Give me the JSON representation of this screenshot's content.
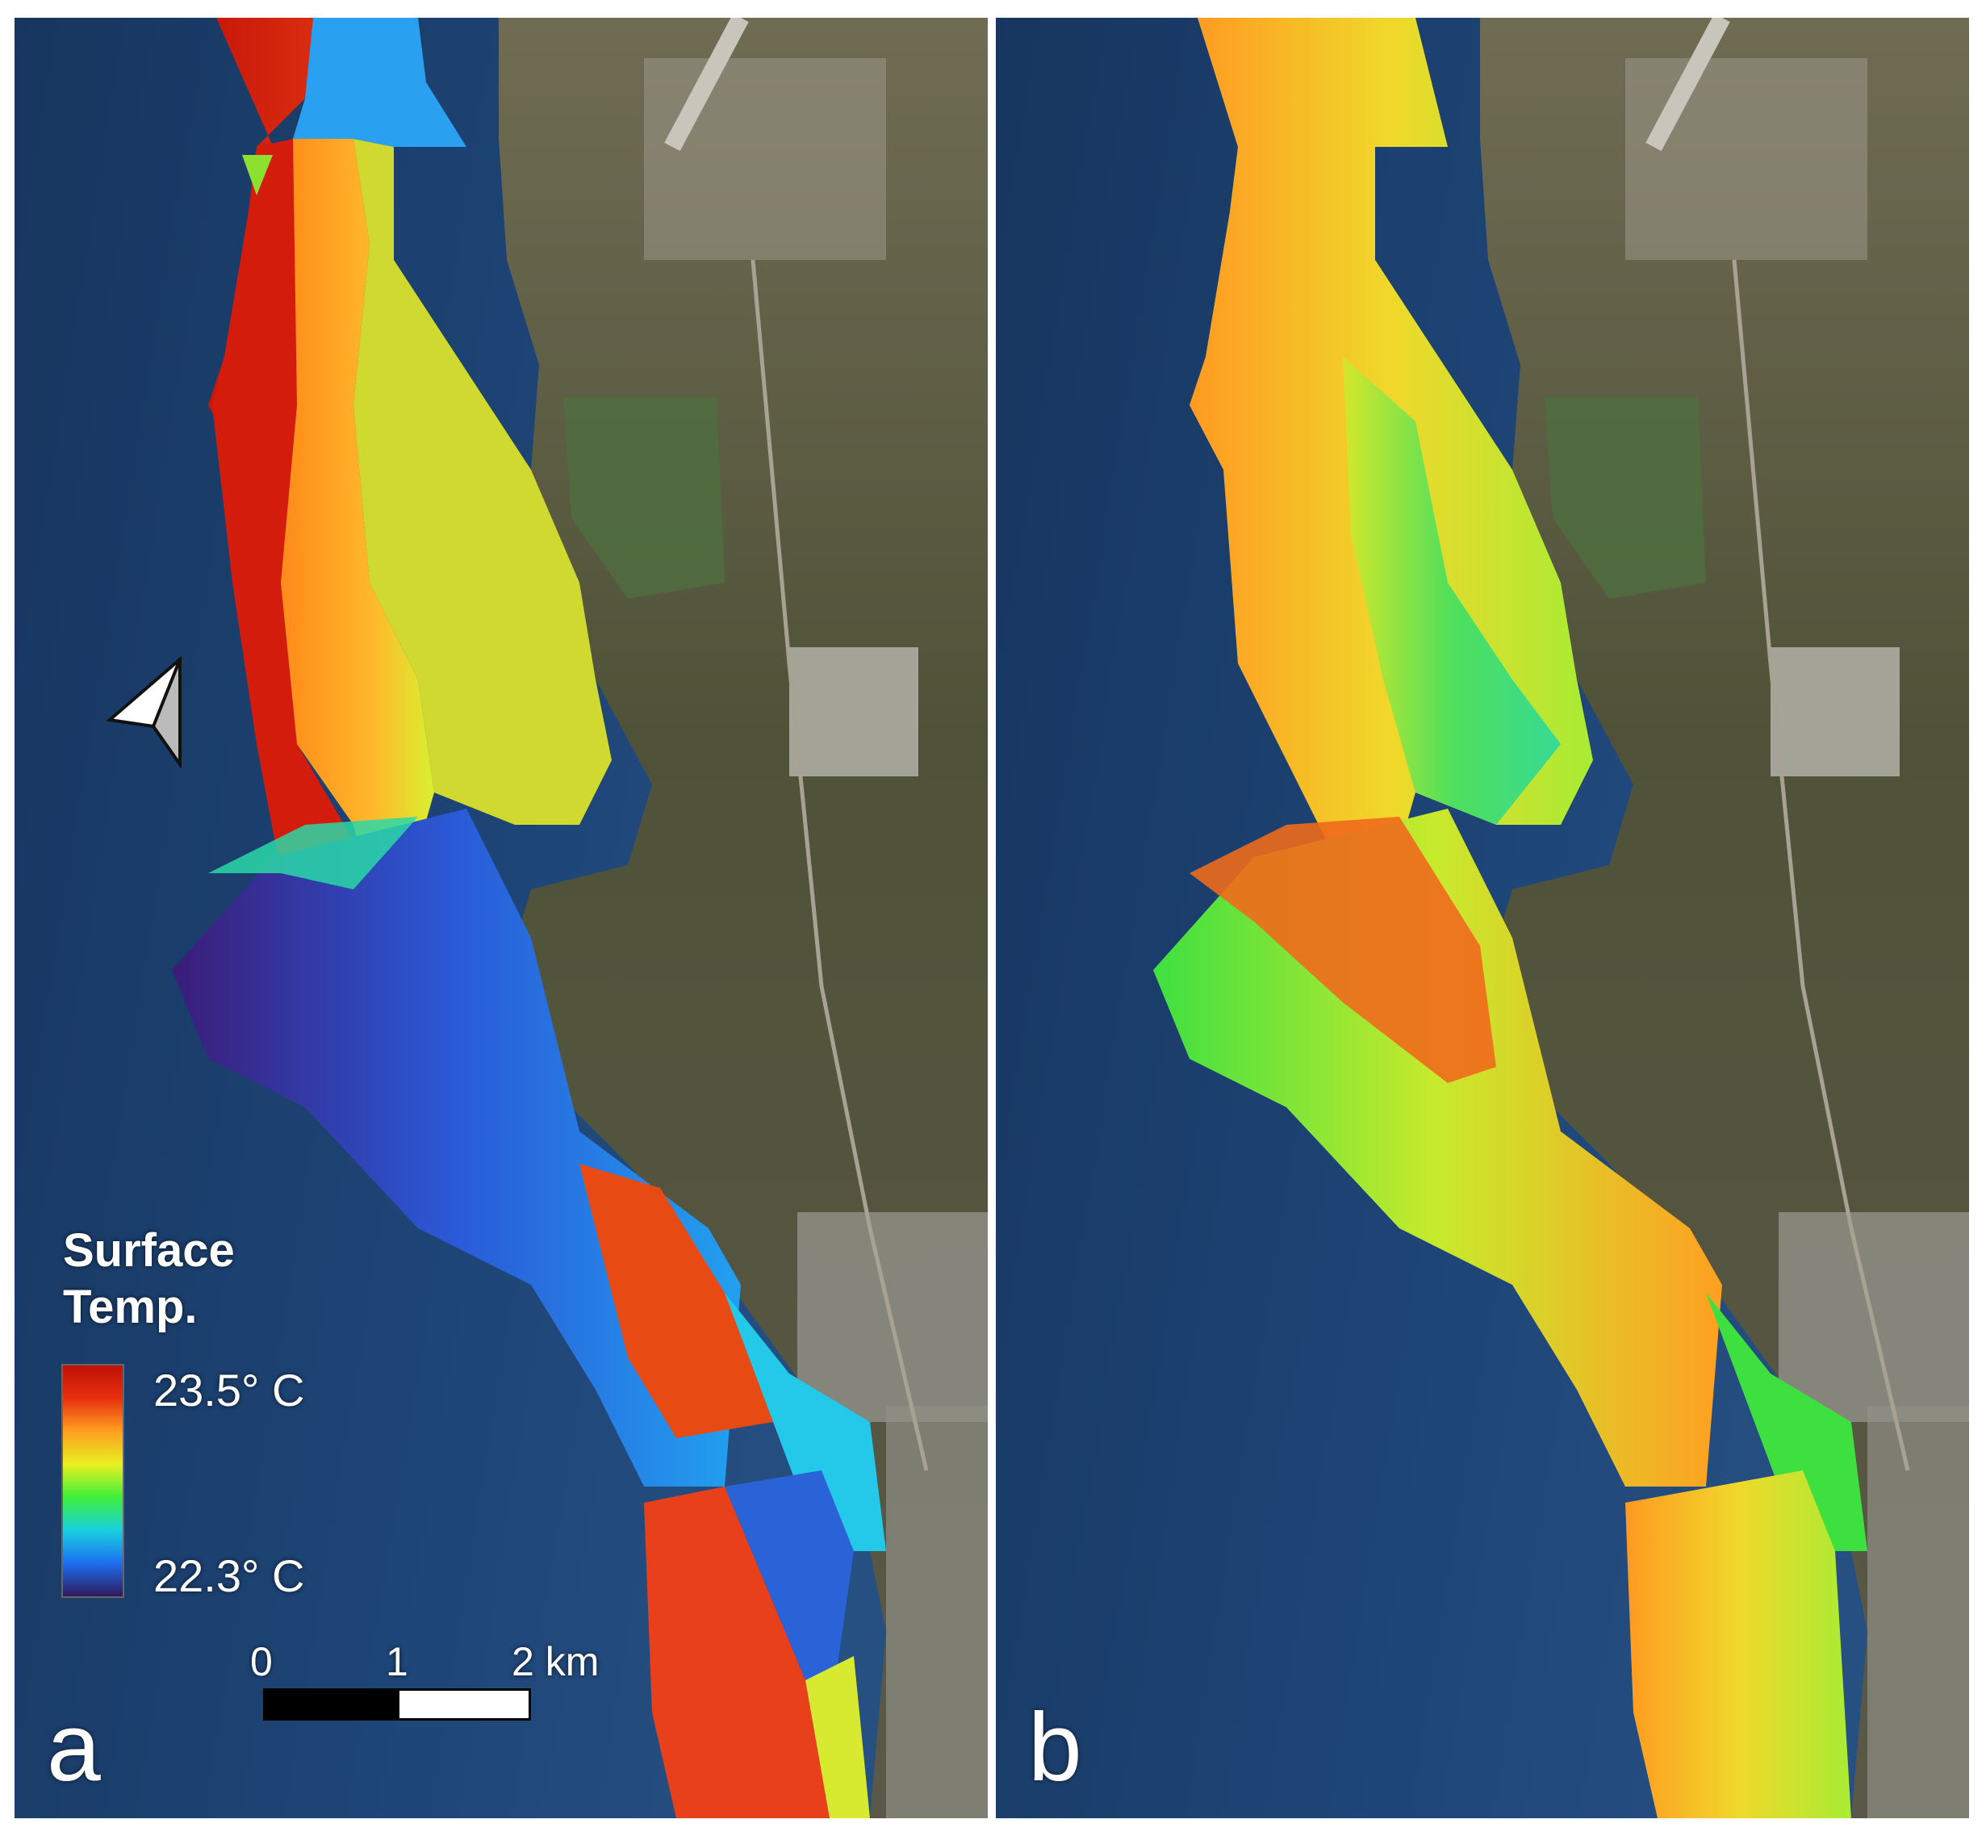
{
  "panels": [
    {
      "id": "a",
      "label": "a"
    },
    {
      "id": "b",
      "label": "b"
    }
  ],
  "legend": {
    "title_line1": "Surface",
    "title_line2": "Temp.",
    "max_label": "23.5° C",
    "min_label": "22.3° C",
    "max_value_c": 23.5,
    "min_value_c": 22.3,
    "colormap": [
      "#2e1a5c",
      "#1e6ef0",
      "#18d0e0",
      "#3ef03a",
      "#e8f020",
      "#ffa020",
      "#e83010",
      "#c01008"
    ]
  },
  "scale_bar": {
    "tick_0": "0",
    "tick_1": "1",
    "tick_2": "2 km"
  },
  "colors": {
    "ocean": "#1d3f70",
    "land": "#5c5a3c",
    "urban": "#8c8c86"
  },
  "icons": {
    "north_arrow": "north-arrow-icon"
  }
}
